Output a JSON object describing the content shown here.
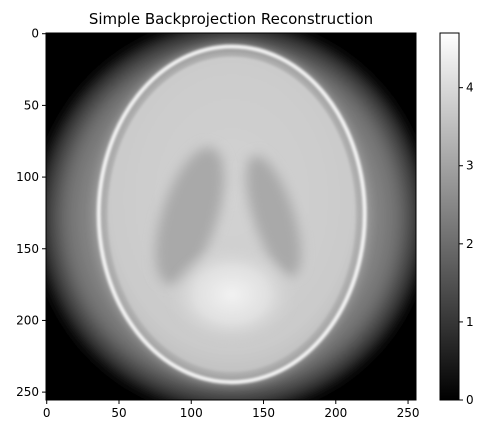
{
  "chart_data": {
    "type": "heatmap",
    "title": "Simple Backprojection Reconstruction",
    "colormap": "gray",
    "image_size": [
      256,
      256
    ],
    "x_ticks": [
      0,
      50,
      100,
      150,
      200,
      250
    ],
    "y_ticks": [
      0,
      50,
      100,
      150,
      200,
      250
    ],
    "xlim": [
      -0.5,
      255.5
    ],
    "ylim": [
      255.5,
      -0.5
    ],
    "colorbar": {
      "vmin": 0,
      "vmax": 4.7,
      "ticks": [
        0,
        1,
        2,
        3,
        4
      ]
    },
    "features": [
      {
        "name": "outer-disk",
        "cx": 128,
        "cy": 128,
        "r": 135,
        "value": 2.4
      },
      {
        "name": "skull-ellipse",
        "cx": 128,
        "cy": 126,
        "rx": 92,
        "ry": 117,
        "value": 4.4
      },
      {
        "name": "brain-interior",
        "cx": 128,
        "cy": 126,
        "rx": 86,
        "ry": 110,
        "value": 3.4
      },
      {
        "name": "left-ventricle",
        "cx": 99,
        "cy": 127,
        "rx": 19,
        "ry": 50,
        "angle": 18,
        "value": 2.7
      },
      {
        "name": "right-ventricle",
        "cx": 157,
        "cy": 127,
        "rx": 14,
        "ry": 44,
        "angle": -18,
        "value": 2.8
      },
      {
        "name": "bright-region",
        "cx": 128,
        "cy": 182,
        "rx": 45,
        "ry": 35,
        "value": 4.2
      }
    ]
  }
}
